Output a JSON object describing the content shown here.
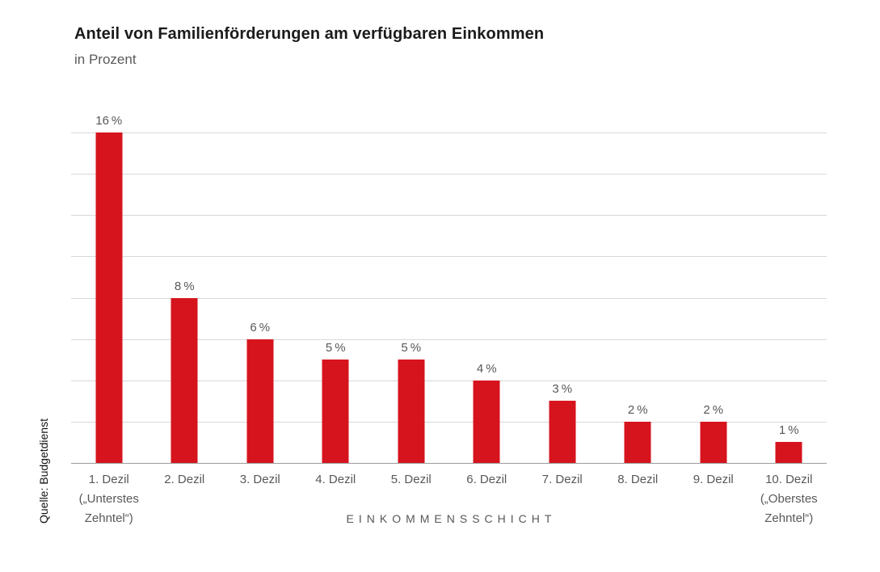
{
  "title": "Anteil von Familienförderungen am verfügbaren Einkommen",
  "subtitle": "in Prozent",
  "source": "Quelle: Budgetdienst",
  "colors": {
    "bar": "#d6141d",
    "gridline": "#d8d8d8",
    "axis_line": "#9b9b9b",
    "title_text": "#1b1b1b",
    "muted_text": "#58585a"
  },
  "chart_data": {
    "type": "bar",
    "title": "Anteil von Familienförderungen am verfügbaren Einkommen",
    "subtitle": "in Prozent",
    "categories": [
      "1. Dezil\n(„Unterstes\nZehntel“)",
      "2. Dezil",
      "3. Dezil",
      "4. Dezil",
      "5. Dezil",
      "6. Dezil",
      "7. Dezil",
      "8. Dezil",
      "9. Dezil",
      "10. Dezil\n(„Oberstes\nZehntel“)"
    ],
    "values": [
      16,
      8,
      6,
      5,
      5,
      4,
      3,
      2,
      2,
      1
    ],
    "value_labels": [
      "16 %",
      "8 %",
      "6 %",
      "5 %",
      "5 %",
      "4 %",
      "3 %",
      "2 %",
      "2 %",
      "1 %"
    ],
    "xlabel": "EINKOMMENSSCHICHT",
    "ylabel": "",
    "ylim": [
      0,
      16
    ],
    "grid_step": 2,
    "grid": true,
    "legend": false,
    "source": "Quelle: Budgetdienst"
  }
}
